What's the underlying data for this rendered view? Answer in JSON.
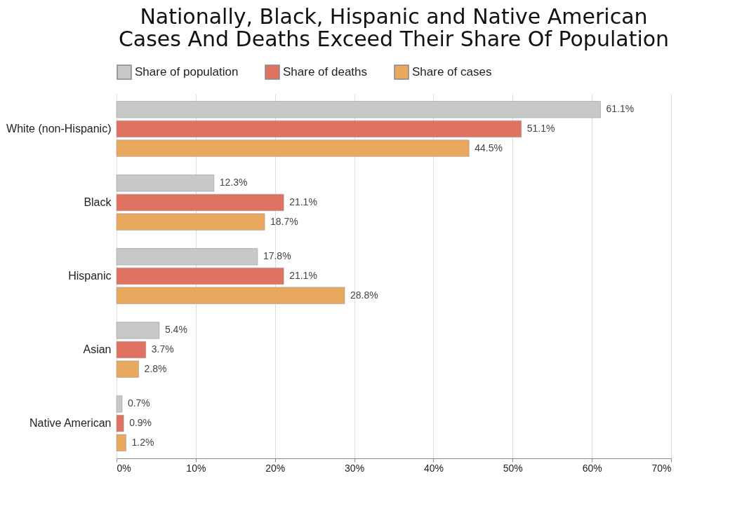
{
  "chart_data": {
    "type": "bar",
    "orientation": "horizontal",
    "title": "Nationally, Black, Hispanic and Native American Cases And Deaths Exceed Their Share Of Population",
    "categories": [
      "White (non-Hispanic)",
      "Black",
      "Hispanic",
      "Asian",
      "Native American"
    ],
    "series": [
      {
        "name": "Share of population",
        "color": "#c8c8c8",
        "values": [
          61.1,
          12.3,
          17.8,
          5.4,
          0.7
        ],
        "value_labels": [
          "61.1%",
          "12.3%",
          "17.8%",
          "5.4%",
          "0.7%"
        ]
      },
      {
        "name": "Share of deaths",
        "color": "#e07262",
        "values": [
          51.1,
          21.1,
          21.1,
          3.7,
          0.9
        ],
        "value_labels": [
          "51.1%",
          "21.1%",
          "21.1%",
          "3.7%",
          "0.9%"
        ]
      },
      {
        "name": "Share of cases",
        "color": "#e8a85e",
        "values": [
          44.5,
          18.7,
          28.8,
          2.8,
          1.2
        ],
        "value_labels": [
          "44.5%",
          "18.7%",
          "28.8%",
          "2.8%",
          "1.2%"
        ]
      }
    ],
    "xlim": [
      0,
      70
    ],
    "xticks": [
      {
        "value": 0,
        "label": "0%"
      },
      {
        "value": 10,
        "label": "10%"
      },
      {
        "value": 20,
        "label": "20%"
      },
      {
        "value": 30,
        "label": "30%"
      },
      {
        "value": 40,
        "label": "40%"
      },
      {
        "value": 50,
        "label": "50%"
      },
      {
        "value": 60,
        "label": "60%"
      },
      {
        "value": 70,
        "label": "70%"
      }
    ],
    "grid": "x",
    "legend": "top"
  }
}
